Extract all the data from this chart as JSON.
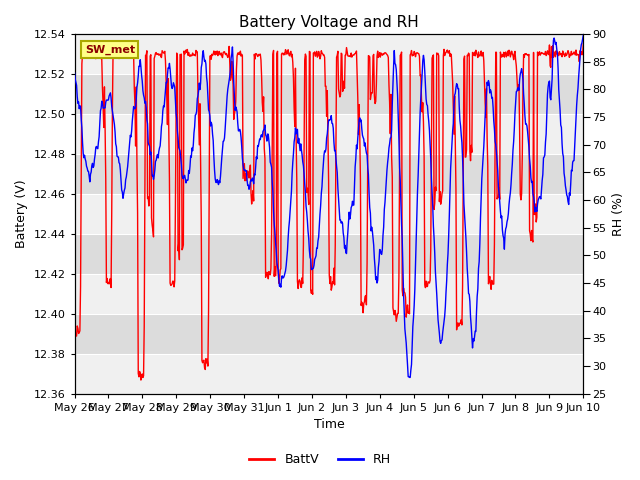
{
  "title": "Battery Voltage and RH",
  "xlabel": "Time",
  "ylabel_left": "Battery (V)",
  "ylabel_right": "RH (%)",
  "ylim_left": [
    12.36,
    12.54
  ],
  "ylim_right": [
    25,
    90
  ],
  "yticks_left": [
    12.36,
    12.38,
    12.4,
    12.42,
    12.44,
    12.46,
    12.48,
    12.5,
    12.52,
    12.54
  ],
  "yticks_right": [
    25,
    30,
    35,
    40,
    45,
    50,
    55,
    60,
    65,
    70,
    75,
    80,
    85,
    90
  ],
  "xtick_labels": [
    "May 26",
    "May 27",
    "May 28",
    "May 29",
    "May 30",
    "May 31",
    "Jun 1",
    "Jun 2",
    "Jun 3",
    "Jun 4",
    "Jun 5",
    "Jun 6",
    "Jun 7",
    "Jun 8",
    "Jun 9",
    "Jun 10"
  ],
  "color_batt": "#FF0000",
  "color_rh": "#0000FF",
  "legend_label_batt": "BattV",
  "legend_label_rh": "RH",
  "station_label": "SW_met",
  "bg_color": "#FFFFFF",
  "plot_bg_light": "#F0F0F0",
  "plot_bg_dark": "#DCDCDC",
  "grid_color": "#FFFFFF",
  "title_fontsize": 11,
  "axis_label_fontsize": 9,
  "tick_fontsize": 8,
  "legend_fontsize": 9,
  "band_colors": [
    "#F0F0F0",
    "#DCDCDC"
  ],
  "batt_high": 12.53,
  "batt_low_min": 12.365,
  "batt_low_max": 12.42
}
